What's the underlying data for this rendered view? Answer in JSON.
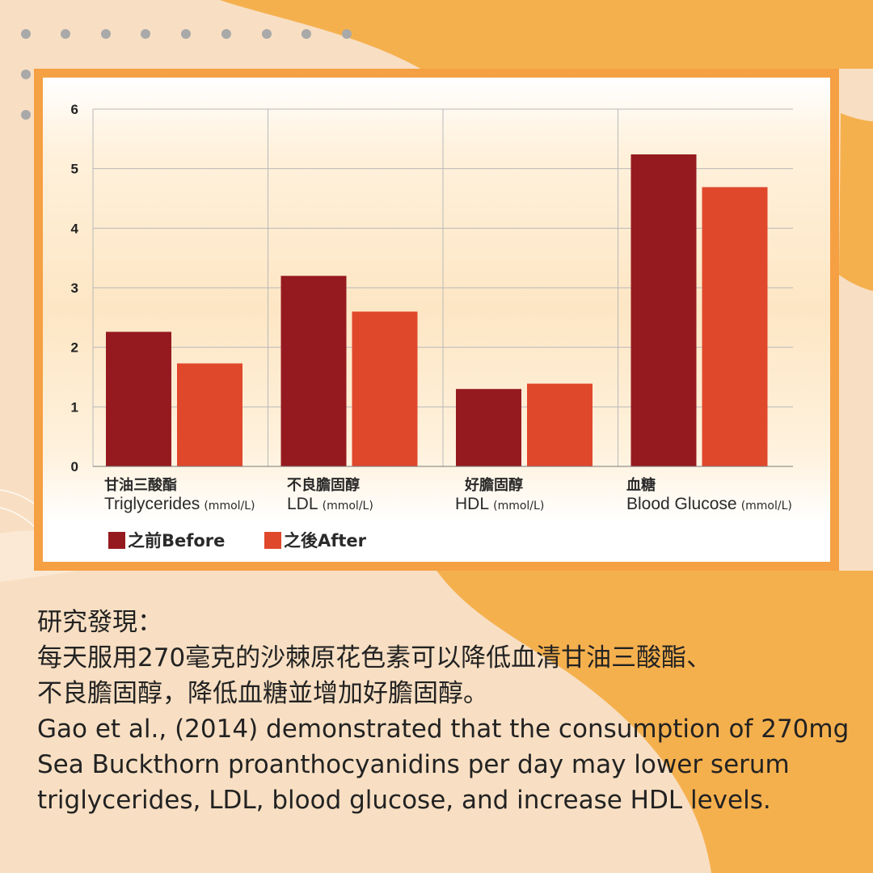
{
  "colors": {
    "background": "#f8dfc3",
    "blob": "#f5b04e",
    "frame": "#f5a043",
    "before": "#951a1f",
    "after": "#e0482c"
  },
  "chart_data": {
    "type": "bar",
    "categories": [
      {
        "zh": "甘油三酸酯",
        "en": "Triglycerides",
        "unit": "(mmol/L)"
      },
      {
        "zh": "不良膽固醇",
        "en": "LDL",
        "unit": "(mmol/L)"
      },
      {
        "zh": "好膽固醇",
        "en": "HDL",
        "unit": "(mmol/L)"
      },
      {
        "zh": "血糖",
        "en": "Blood Glucose",
        "unit": "(mmol/L)"
      }
    ],
    "series": [
      {
        "name": "之前Before",
        "values": [
          2.26,
          3.2,
          1.3,
          5.24
        ]
      },
      {
        "name": "之後After",
        "values": [
          1.73,
          2.6,
          1.39,
          4.69
        ]
      }
    ],
    "ylim": [
      0,
      6
    ],
    "yticks": [
      0,
      1,
      2,
      3,
      4,
      5,
      6
    ],
    "grid": true,
    "legend_position": "bottom-left"
  },
  "text": {
    "heading": "研究發現：",
    "line_zh_1": "每天服用270毫克的沙棘原花色素可以降低血清甘油三酸酯、",
    "line_zh_2": "不良膽固醇，降低血糖並增加好膽固醇。",
    "line_en_1": "Gao et al., (2014) demonstrated that the consumption of 270mg",
    "line_en_2": "Sea Buckthorn proanthocyanidins per day may lower serum",
    "line_en_3": "triglycerides, LDL, blood glucose, and increase HDL levels."
  }
}
